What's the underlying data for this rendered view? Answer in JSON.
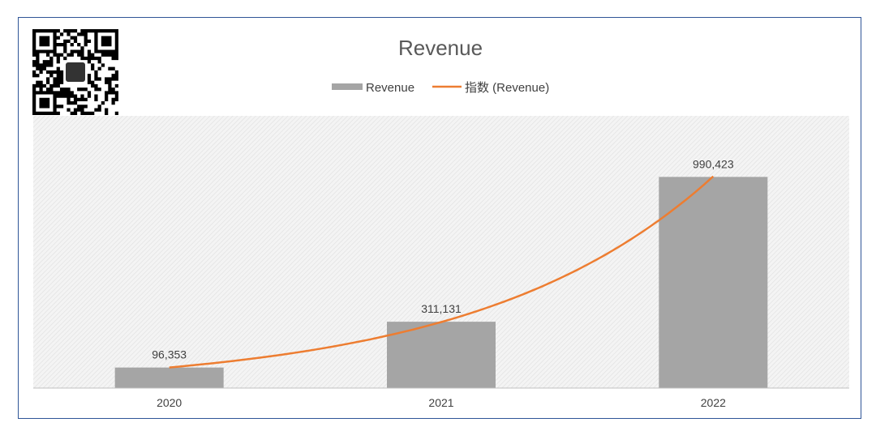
{
  "chart_data": {
    "type": "bar",
    "title": "Revenue",
    "categories": [
      "2020",
      "2021",
      "2022"
    ],
    "series": [
      {
        "name": "Revenue",
        "values": [
          96353,
          311131,
          990423
        ],
        "labels": [
          "96,353",
          "311,131",
          "990,423"
        ]
      }
    ],
    "trendline": {
      "name": "指数 (Revenue)",
      "kind": "exponential",
      "of_series": "Revenue"
    },
    "xlabel": "",
    "ylabel": "",
    "ylim": [
      0,
      1100000
    ],
    "grid": false,
    "legend": "top-center",
    "colors": {
      "bar": "#a5a5a5",
      "trend": "#ed7d31",
      "border": "#2f5597"
    }
  },
  "qr_code": {
    "icon": "qr-code-icon"
  }
}
